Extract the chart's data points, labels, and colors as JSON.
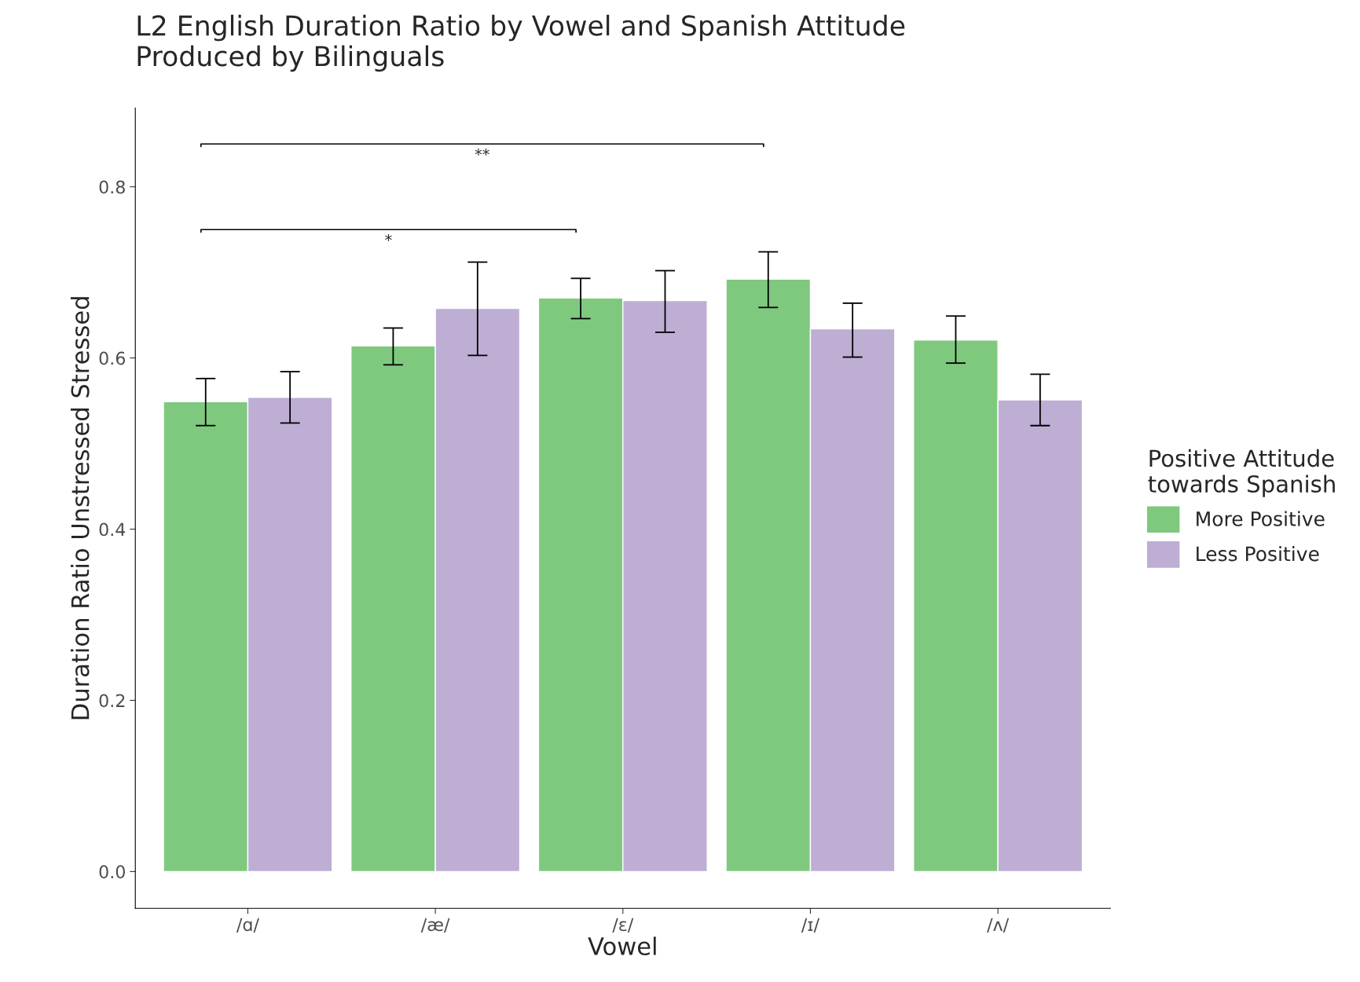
{
  "chart_data": {
    "type": "bar",
    "title": "L2 English Duration Ratio by Vowel and Spanish Attitude\nProduced by Bilinguals",
    "xlabel": "Vowel",
    "ylabel": "Duration Ratio Unstressed Stressed",
    "legend_title": "Positive Attitude\ntowards Spanish",
    "categories": [
      "/ɑ/",
      "/æ/",
      "/ɛ/",
      "/ɪ/",
      "/ʌ/"
    ],
    "series": [
      {
        "name": "More Positive",
        "color": "#7fc97f",
        "values": [
          0.549,
          0.614,
          0.67,
          0.692,
          0.621
        ],
        "errors": [
          [
            0.521,
            0.576
          ],
          [
            0.592,
            0.635
          ],
          [
            0.646,
            0.693
          ],
          [
            0.659,
            0.724
          ],
          [
            0.594,
            0.649
          ]
        ]
      },
      {
        "name": "Less Positive",
        "color": "#beaed4",
        "values": [
          0.554,
          0.658,
          0.667,
          0.634,
          0.551
        ],
        "errors": [
          [
            0.524,
            0.584
          ],
          [
            0.603,
            0.712
          ],
          [
            0.63,
            0.702
          ],
          [
            0.601,
            0.664
          ],
          [
            0.521,
            0.581
          ]
        ]
      }
    ],
    "annotations": [
      "**",
      "*"
    ],
    "ylim": [
      -0.043,
      0.892
    ],
    "yticks": [
      {
        "value": 0,
        "label": "0.0"
      },
      0.2,
      0.4,
      0.6,
      0.8
    ],
    "grid": false,
    "legend": "right"
  }
}
